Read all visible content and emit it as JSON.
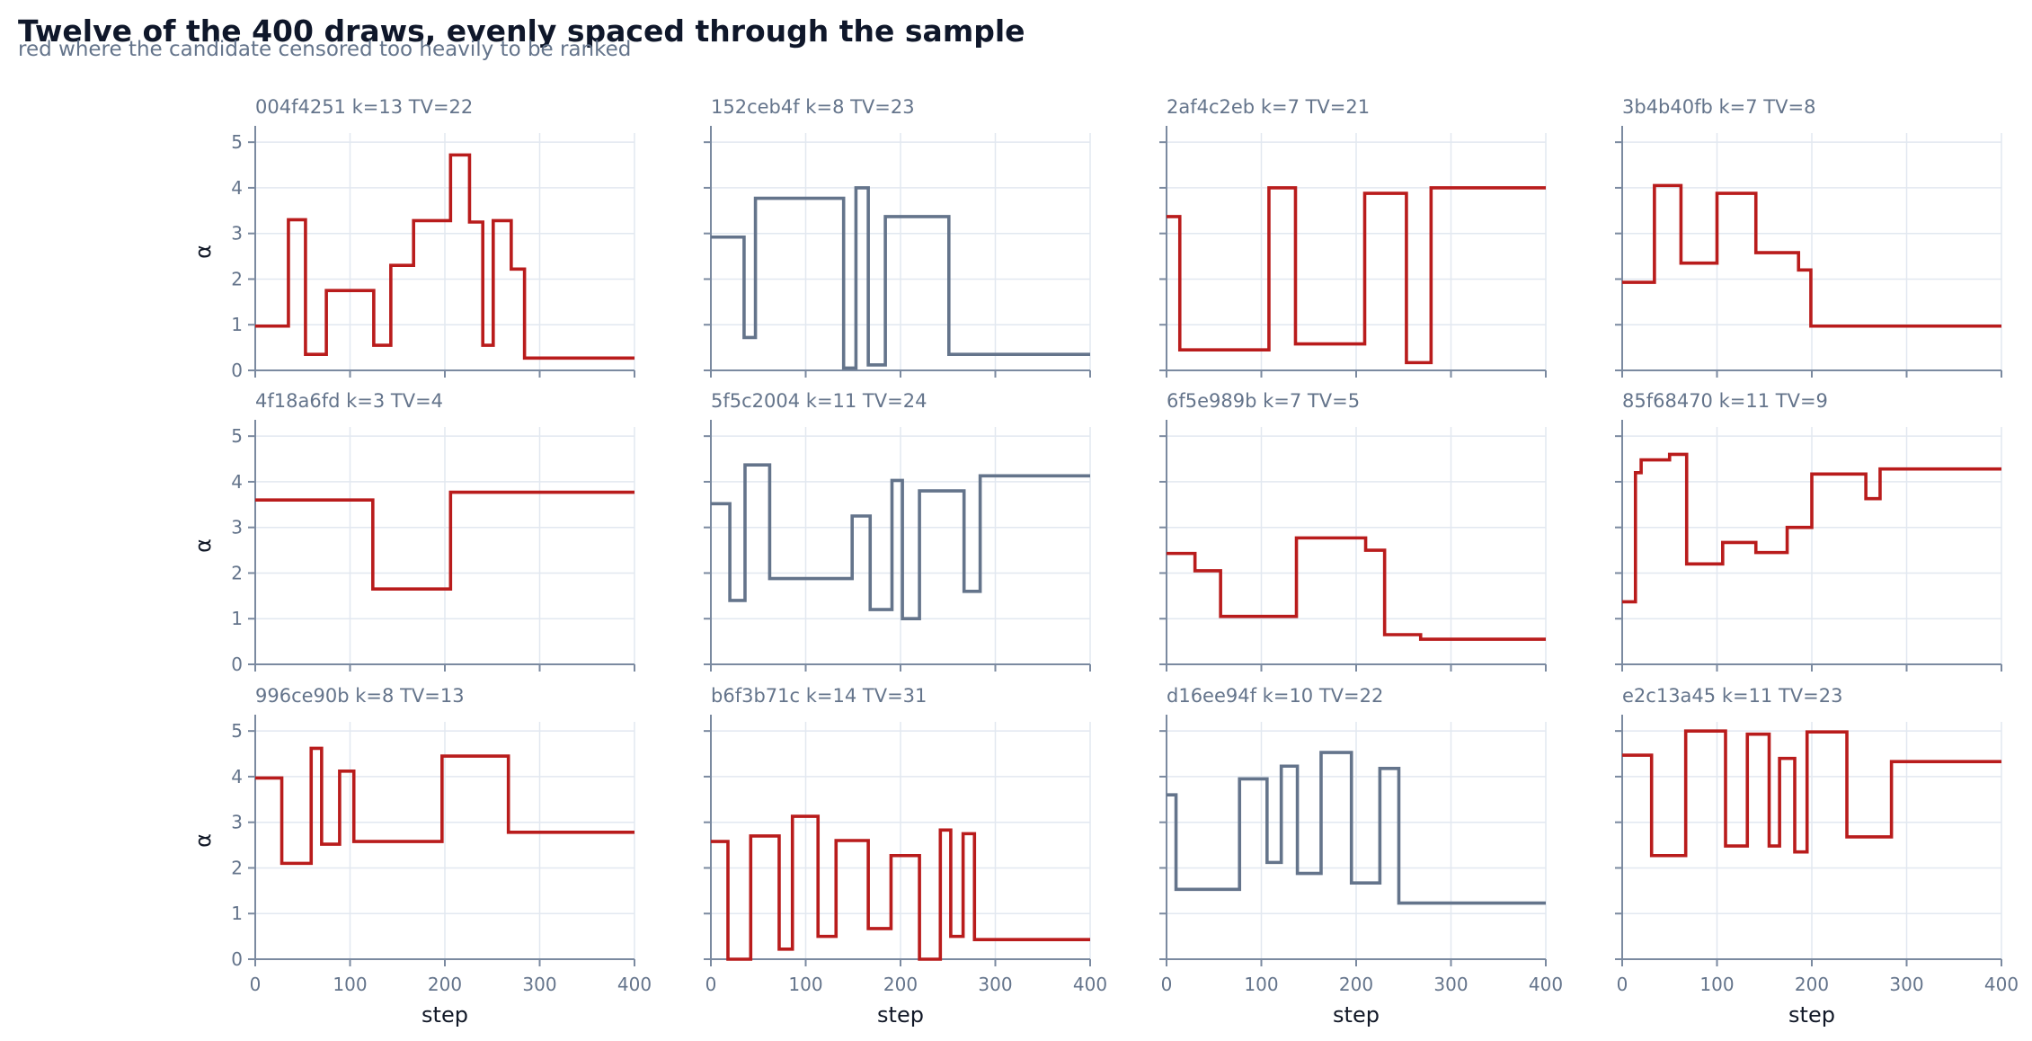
{
  "title": "Twelve of the 400 draws, evenly spaced through the sample",
  "subtitle": "red where the candidate censored too heavily to be ranked",
  "colors": {
    "flagged": "#b91c1c",
    "ranked": "#64748b"
  },
  "chart_data": {
    "type": "line",
    "style": "step",
    "grid": true,
    "xlabel": "step",
    "ylabel": "α",
    "xlim": [
      0,
      400
    ],
    "ylim": [
      0,
      5.2
    ],
    "xticks": [
      0,
      100,
      200,
      300,
      400
    ],
    "yticks": [
      0,
      1,
      2,
      3,
      4,
      5
    ],
    "layout": "3x4 grid",
    "panels": [
      {
        "label": "004f4251  k=13  TV=22",
        "flagged": true,
        "x": [
          0,
          35,
          53,
          75,
          125,
          143,
          167,
          206,
          226,
          240,
          251,
          270,
          284,
          400
        ],
        "y": [
          0.97,
          3.3,
          0.35,
          1.75,
          0.55,
          2.3,
          3.28,
          4.72,
          3.25,
          0.55,
          3.28,
          2.22,
          0.27,
          0.27
        ]
      },
      {
        "label": "152ceb4f  k=8  TV=23",
        "flagged": false,
        "x": [
          0,
          35,
          47,
          140,
          153,
          166,
          184,
          251,
          400
        ],
        "y": [
          2.92,
          0.72,
          3.77,
          0.05,
          4.0,
          0.12,
          3.37,
          0.35,
          0.35
        ]
      },
      {
        "label": "2af4c2eb  k=7  TV=21",
        "flagged": true,
        "x": [
          0,
          14,
          108,
          136,
          209,
          253,
          279,
          400
        ],
        "y": [
          3.37,
          0.45,
          4.0,
          0.58,
          3.88,
          0.17,
          4.0,
          4.0
        ]
      },
      {
        "label": "3b4b40fb  k=7  TV=8",
        "flagged": true,
        "x": [
          0,
          34,
          62,
          100,
          141,
          186,
          199,
          400
        ],
        "y": [
          1.93,
          4.05,
          2.35,
          3.88,
          2.58,
          2.2,
          0.97,
          0.97
        ]
      },
      {
        "label": "4f18a6fd  k=3  TV=4",
        "flagged": true,
        "x": [
          0,
          124,
          206,
          400
        ],
        "y": [
          3.6,
          1.65,
          3.77,
          3.77
        ]
      },
      {
        "label": "5f5c2004  k=11  TV=24",
        "flagged": false,
        "x": [
          0,
          20,
          36,
          62,
          149,
          168,
          191,
          202,
          220,
          267,
          284,
          400
        ],
        "y": [
          3.52,
          1.4,
          4.37,
          1.88,
          3.25,
          1.2,
          4.03,
          1.0,
          3.8,
          1.6,
          4.13,
          4.13
        ]
      },
      {
        "label": "6f5e989b  k=7  TV=5",
        "flagged": true,
        "x": [
          0,
          30,
          57,
          137,
          210,
          230,
          268,
          400
        ],
        "y": [
          2.43,
          2.05,
          1.05,
          2.77,
          2.5,
          0.65,
          0.55,
          0.55
        ]
      },
      {
        "label": "85f68470  k=11  TV=9",
        "flagged": true,
        "x": [
          0,
          14,
          20,
          50,
          68,
          106,
          141,
          174,
          200,
          257,
          272,
          400
        ],
        "y": [
          1.37,
          4.2,
          4.48,
          4.6,
          2.2,
          2.67,
          2.45,
          3.0,
          4.17,
          3.63,
          4.28,
          4.28
        ]
      },
      {
        "label": "996ce90b  k=8  TV=13",
        "flagged": true,
        "x": [
          0,
          28,
          59,
          70,
          89,
          104,
          197,
          267,
          400
        ],
        "y": [
          3.97,
          2.1,
          4.62,
          2.52,
          4.12,
          2.58,
          4.45,
          2.78,
          2.78
        ]
      },
      {
        "label": "b6f3b71c  k=14  TV=31",
        "flagged": true,
        "x": [
          0,
          18,
          42,
          72,
          86,
          113,
          132,
          166,
          190,
          220,
          242,
          253,
          266,
          278,
          400
        ],
        "y": [
          2.58,
          0.0,
          2.7,
          0.22,
          3.13,
          0.5,
          2.6,
          0.67,
          2.27,
          0.0,
          2.83,
          0.5,
          2.75,
          0.43,
          0.43
        ]
      },
      {
        "label": "d16ee94f  k=10  TV=22",
        "flagged": false,
        "x": [
          0,
          10,
          77,
          106,
          121,
          138,
          163,
          195,
          225,
          245,
          400
        ],
        "y": [
          3.6,
          1.53,
          3.95,
          2.12,
          4.23,
          1.88,
          4.53,
          1.67,
          4.18,
          1.23,
          1.23
        ]
      },
      {
        "label": "e2c13a45  k=11  TV=23",
        "flagged": true,
        "x": [
          0,
          31,
          67,
          109,
          132,
          155,
          166,
          182,
          195,
          237,
          284,
          400
        ],
        "y": [
          4.47,
          2.27,
          5.0,
          2.48,
          4.93,
          2.48,
          4.4,
          2.35,
          4.98,
          2.68,
          4.33,
          4.33
        ]
      }
    ]
  }
}
